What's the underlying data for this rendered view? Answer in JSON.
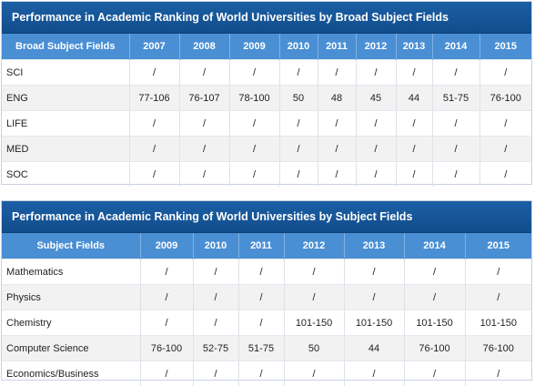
{
  "table1": {
    "title": "Performance in Academic Ranking of World Universities by Broad Subject Fields",
    "headers": [
      "Broad Subject Fields",
      "2007",
      "2008",
      "2009",
      "2010",
      "2011",
      "2012",
      "2013",
      "2014",
      "2015"
    ],
    "rows": [
      [
        "SCI",
        "/",
        "/",
        "/",
        "/",
        "/",
        "/",
        "/",
        "/",
        "/"
      ],
      [
        "ENG",
        "77-106",
        "76-107",
        "78-100",
        "50",
        "48",
        "45",
        "44",
        "51-75",
        "76-100"
      ],
      [
        "LIFE",
        "/",
        "/",
        "/",
        "/",
        "/",
        "/",
        "/",
        "/",
        "/"
      ],
      [
        "MED",
        "/",
        "/",
        "/",
        "/",
        "/",
        "/",
        "/",
        "/",
        "/"
      ],
      [
        "SOC",
        "/",
        "/",
        "/",
        "/",
        "/",
        "/",
        "/",
        "/",
        "/"
      ]
    ]
  },
  "table2": {
    "title": "Performance in Academic Ranking of World Universities by Subject Fields",
    "headers": [
      "Subject Fields",
      "2009",
      "2010",
      "2011",
      "2012",
      "2013",
      "2014",
      "2015"
    ],
    "rows": [
      [
        "Mathematics",
        "/",
        "/",
        "/",
        "/",
        "/",
        "/",
        "/"
      ],
      [
        "Physics",
        "/",
        "/",
        "/",
        "/",
        "/",
        "/",
        "/"
      ],
      [
        "Chemistry",
        "/",
        "/",
        "/",
        "101-150",
        "101-150",
        "101-150",
        "101-150"
      ],
      [
        "Computer Science",
        "76-100",
        "52-75",
        "51-75",
        "50",
        "44",
        "76-100",
        "76-100"
      ],
      [
        "Economics/Business",
        "/",
        "/",
        "/",
        "/",
        "/",
        "/",
        "/"
      ]
    ]
  }
}
